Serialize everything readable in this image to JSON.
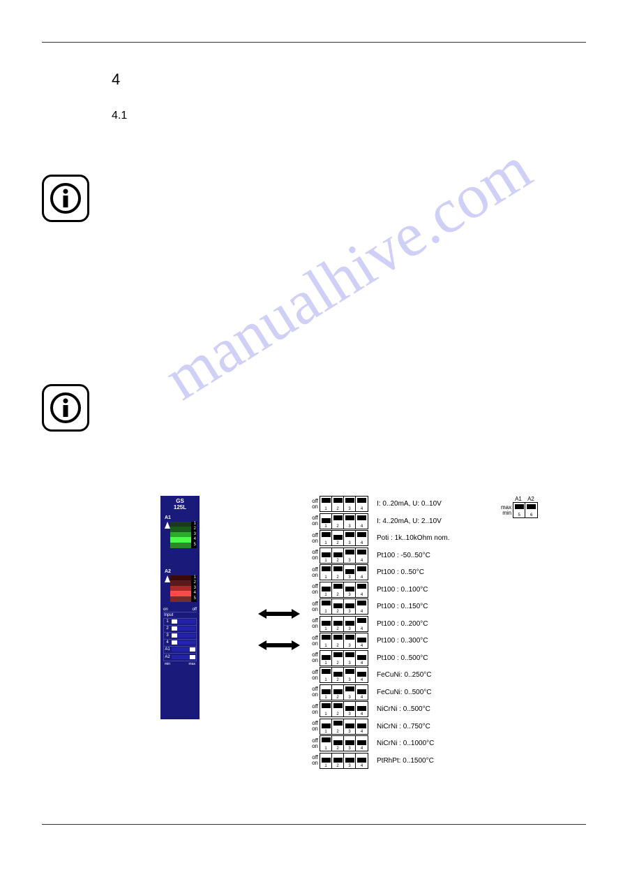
{
  "section": "4",
  "subsection": "4.1",
  "watermark": "manualhive.com",
  "module": {
    "name": "GS\n125L",
    "a1_label": "A1",
    "a2_label": "A2",
    "a1_leds": [
      {
        "n": "1",
        "c": "#1a3a1a"
      },
      {
        "n": "2",
        "c": "#1a5a1a"
      },
      {
        "n": "3",
        "c": "#2aaa2a"
      },
      {
        "n": "4",
        "c": "#4aff4a"
      },
      {
        "n": "5",
        "c": "#2a8a2a"
      }
    ],
    "a2_leds": [
      {
        "n": "1",
        "c": "#3a0a0a"
      },
      {
        "n": "2",
        "c": "#5a1a1a"
      },
      {
        "n": "3",
        "c": "#aa2a2a"
      },
      {
        "n": "4",
        "c": "#ff4a4a"
      },
      {
        "n": "5",
        "c": "#7a2a2a"
      }
    ],
    "dip_on_off": {
      "left": "on",
      "right": "off"
    },
    "input_label": "Input",
    "dip_rows": [
      "1",
      "2",
      "3",
      "4",
      "A1",
      "A2"
    ],
    "dip_states": [
      "off",
      "off",
      "off",
      "off",
      "on",
      "on"
    ],
    "minmax": {
      "left": "min",
      "right": "max"
    }
  },
  "switch_colors": {
    "border": "#000000",
    "knob": "#000000",
    "bg": "#ffffff"
  },
  "row_labels": {
    "top": "off",
    "bottom": "on"
  },
  "switch_numbers": [
    "1",
    "2",
    "3",
    "4"
  ],
  "configs": [
    {
      "sw": [
        "off",
        "off",
        "off",
        "off"
      ],
      "desc": "I: 0..20mA, U: 0..10V"
    },
    {
      "sw": [
        "on",
        "off",
        "off",
        "off"
      ],
      "desc": "I: 4..20mA, U: 2..10V"
    },
    {
      "sw": [
        "off",
        "on",
        "off",
        "off"
      ],
      "desc": "Poti   : 1k..10kOhm nom."
    },
    {
      "sw": [
        "on",
        "on",
        "off",
        "off"
      ],
      "desc": "Pt100 : -50..50°C"
    },
    {
      "sw": [
        "off",
        "off",
        "on",
        "off"
      ],
      "desc": "Pt100 : 0..50°C"
    },
    {
      "sw": [
        "on",
        "off",
        "on",
        "off"
      ],
      "desc": "Pt100 : 0..100°C"
    },
    {
      "sw": [
        "off",
        "on",
        "on",
        "off"
      ],
      "desc": "Pt100 : 0..150°C"
    },
    {
      "sw": [
        "on",
        "on",
        "on",
        "off"
      ],
      "desc": "Pt100 : 0..200°C"
    },
    {
      "sw": [
        "off",
        "off",
        "off",
        "on"
      ],
      "desc": "Pt100 : 0..300°C"
    },
    {
      "sw": [
        "on",
        "off",
        "off",
        "on"
      ],
      "desc": "Pt100 : 0..500°C"
    },
    {
      "sw": [
        "off",
        "on",
        "off",
        "on"
      ],
      "desc": "FeCuNi: 0..250°C"
    },
    {
      "sw": [
        "on",
        "on",
        "off",
        "on"
      ],
      "desc": "FeCuNi: 0..500°C"
    },
    {
      "sw": [
        "off",
        "off",
        "on",
        "on"
      ],
      "desc": "NiCrNi : 0..500°C"
    },
    {
      "sw": [
        "on",
        "off",
        "on",
        "on"
      ],
      "desc": "NiCrNi : 0..750°C"
    },
    {
      "sw": [
        "off",
        "on",
        "on",
        "on"
      ],
      "desc": "NiCrNi : 0..1000°C"
    },
    {
      "sw": [
        "on",
        "on",
        "on",
        "on"
      ],
      "desc": "PtRhPt: 0..1500°C"
    }
  ],
  "side": {
    "headers": [
      "A1",
      "A2"
    ],
    "top_label": "max",
    "bottom_label": "min",
    "numbers": [
      "5",
      "6"
    ],
    "states": [
      "off",
      "off"
    ]
  }
}
